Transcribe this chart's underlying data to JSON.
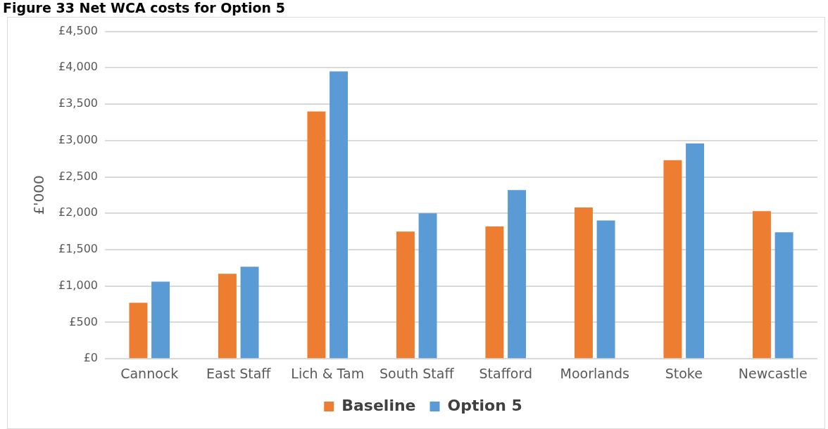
{
  "chart_data": {
    "type": "bar",
    "title": "Figure 33 Net WCA costs for Option 5",
    "ylabel": "£'000",
    "categories": [
      "Cannock",
      "East Staff",
      "Lich & Tam",
      "South Staff",
      "Stafford",
      "Moorlands",
      "Stoke",
      "Newcastle"
    ],
    "series": [
      {
        "name": "Baseline",
        "color": "#ed7d31",
        "values": [
          770,
          1170,
          3400,
          1750,
          1820,
          2080,
          2730,
          2030
        ]
      },
      {
        "name": "Option 5",
        "color": "#5b9bd5",
        "values": [
          1060,
          1265,
          3950,
          2000,
          2320,
          1900,
          2960,
          1740
        ]
      }
    ],
    "ylim": [
      0,
      4500
    ],
    "yticks": [
      {
        "value": 0,
        "label": "£0"
      },
      {
        "value": 500,
        "label": "£500"
      },
      {
        "value": 1000,
        "label": "£1,000"
      },
      {
        "value": 1500,
        "label": "£1,500"
      },
      {
        "value": 2000,
        "label": "£2,000"
      },
      {
        "value": 2500,
        "label": "£2,500"
      },
      {
        "value": 3000,
        "label": "£3,000"
      },
      {
        "value": 3500,
        "label": "£3,500"
      },
      {
        "value": 4000,
        "label": "£4,000"
      },
      {
        "value": 4500,
        "label": "£4,500"
      }
    ],
    "grid": "y",
    "legend": "bottom"
  }
}
